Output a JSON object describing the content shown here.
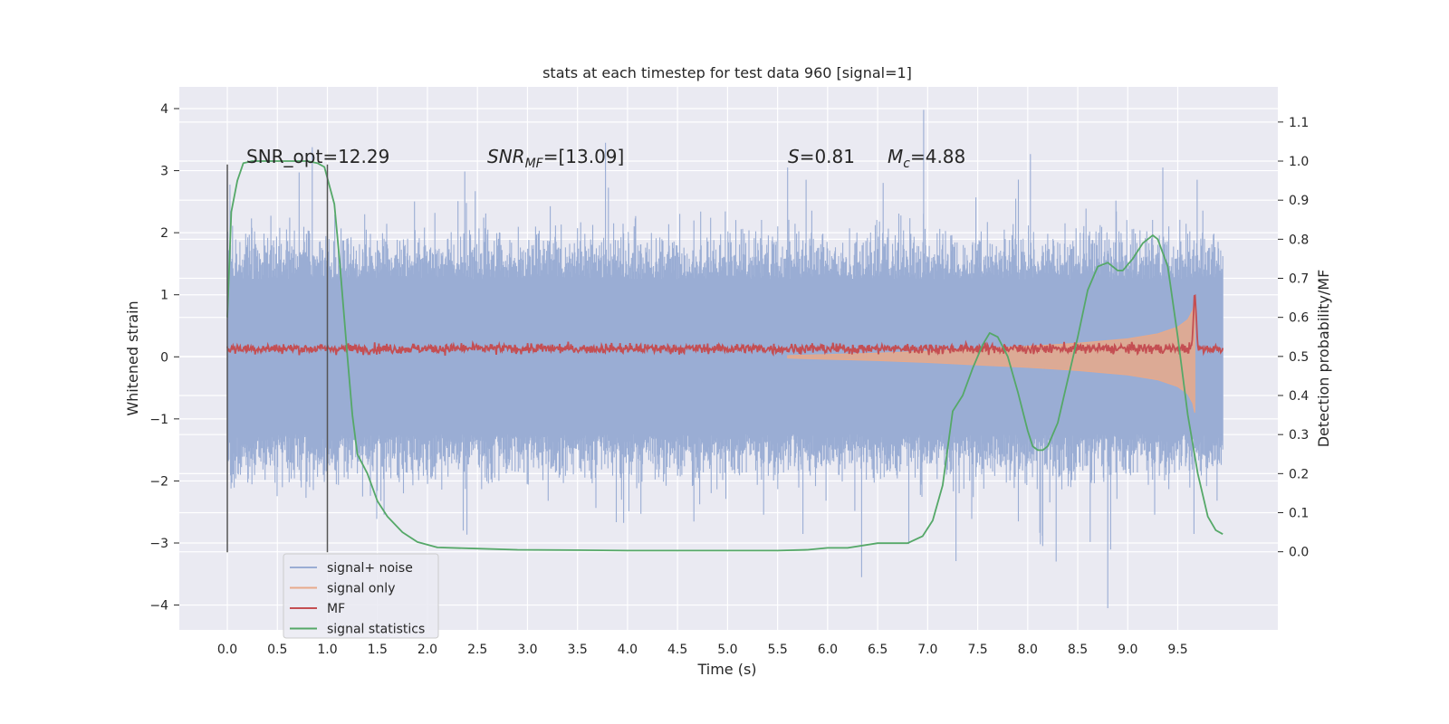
{
  "chart_data": {
    "type": "line",
    "title": "stats at each timestep for test data 960 [signal=1]",
    "xlabel": "Time (s)",
    "ylabel": "Whitened strain",
    "ylabel_right": "Detection probability/MF",
    "xlim": [
      -0.48,
      10.5
    ],
    "ylim": [
      -4.4,
      4.35
    ],
    "ylim_right": [
      -0.2,
      1.19
    ],
    "x_ticks": [
      "0.0",
      "0.5",
      "1.0",
      "1.5",
      "2.0",
      "2.5",
      "3.0",
      "3.5",
      "4.0",
      "4.5",
      "5.0",
      "5.5",
      "6.0",
      "6.5",
      "7.0",
      "7.5",
      "8.0",
      "8.5",
      "9.0",
      "9.5"
    ],
    "y_ticks": [
      "4",
      "3",
      "2",
      "1",
      "0",
      "−1",
      "−2",
      "−3",
      "−4"
    ],
    "y_right_ticks": [
      "1.1",
      "1.0",
      "0.9",
      "0.8",
      "0.7",
      "0.6",
      "0.5",
      "0.4",
      "0.3",
      "0.2",
      "0.1",
      "0.0"
    ],
    "grid": true,
    "legend_position": "lower-left",
    "annotations": {
      "snr_opt": "SNR_opt=12.29",
      "snr_mf_label": "SNR",
      "snr_mf_sub": "MF",
      "snr_mf_value": "=[13.09]",
      "s_label": "S",
      "s_value": "=0.81",
      "mc_label": "M",
      "mc_sub": "c",
      "mc_value": "=4.88"
    },
    "vertical_lines": {
      "x": [
        0.0,
        1.0
      ],
      "y_range": [
        -3.15,
        3.1
      ],
      "color": "#555555"
    },
    "series": [
      {
        "name": "signal+ noise",
        "color": "#9aadd4",
        "axis": "left",
        "x_range": [
          0.0,
          9.95
        ],
        "envelope": {
          "typical_amplitude": 1.25,
          "max": 3.98,
          "min": -4.05
        }
      },
      {
        "name": "signal only",
        "color": "#e8a98a",
        "axis": "left",
        "x": [
          5.6,
          6.5,
          7.0,
          7.5,
          8.0,
          8.5,
          9.0,
          9.3,
          9.5,
          9.6,
          9.65,
          9.67
        ],
        "amplitude": [
          0.02,
          0.06,
          0.09,
          0.13,
          0.17,
          0.22,
          0.29,
          0.37,
          0.48,
          0.6,
          0.75,
          0.9
        ]
      },
      {
        "name": "MF",
        "color": "#c44e52",
        "axis": "right",
        "x_range": [
          0.0,
          9.95
        ],
        "baseline": 0.52,
        "noise_amplitude": 0.015,
        "peak": {
          "x": 9.67,
          "y": 0.67
        }
      },
      {
        "name": "signal statistics",
        "color": "#55a868",
        "axis": "right",
        "x": [
          0.0,
          0.04,
          0.1,
          0.16,
          0.25,
          0.4,
          0.6,
          0.8,
          0.9,
          0.97,
          1.07,
          1.12,
          1.2,
          1.25,
          1.3,
          1.4,
          1.5,
          1.6,
          1.75,
          1.9,
          2.1,
          2.5,
          2.9,
          3.5,
          4.0,
          4.5,
          5.0,
          5.5,
          5.8,
          6.0,
          6.2,
          6.5,
          6.8,
          6.95,
          7.05,
          7.15,
          7.25,
          7.35,
          7.45,
          7.55,
          7.62,
          7.7,
          7.8,
          7.9,
          8.0,
          8.05,
          8.1,
          8.15,
          8.2,
          8.3,
          8.4,
          8.5,
          8.6,
          8.7,
          8.8,
          8.9,
          8.95,
          9.05,
          9.15,
          9.25,
          9.3,
          9.4,
          9.5,
          9.6,
          9.7,
          9.8,
          9.88,
          9.95
        ],
        "y": [
          0.6,
          0.87,
          0.95,
          0.995,
          1.0,
          1.0,
          1.0,
          1.0,
          0.995,
          0.985,
          0.89,
          0.75,
          0.5,
          0.35,
          0.25,
          0.2,
          0.13,
          0.09,
          0.05,
          0.025,
          0.011,
          0.008,
          0.005,
          0.004,
          0.003,
          0.003,
          0.003,
          0.003,
          0.005,
          0.01,
          0.01,
          0.022,
          0.022,
          0.04,
          0.08,
          0.17,
          0.36,
          0.4,
          0.47,
          0.53,
          0.56,
          0.55,
          0.5,
          0.41,
          0.31,
          0.27,
          0.26,
          0.26,
          0.27,
          0.33,
          0.44,
          0.55,
          0.67,
          0.73,
          0.74,
          0.72,
          0.72,
          0.75,
          0.79,
          0.81,
          0.8,
          0.73,
          0.55,
          0.35,
          0.2,
          0.09,
          0.055,
          0.045
        ]
      }
    ]
  }
}
